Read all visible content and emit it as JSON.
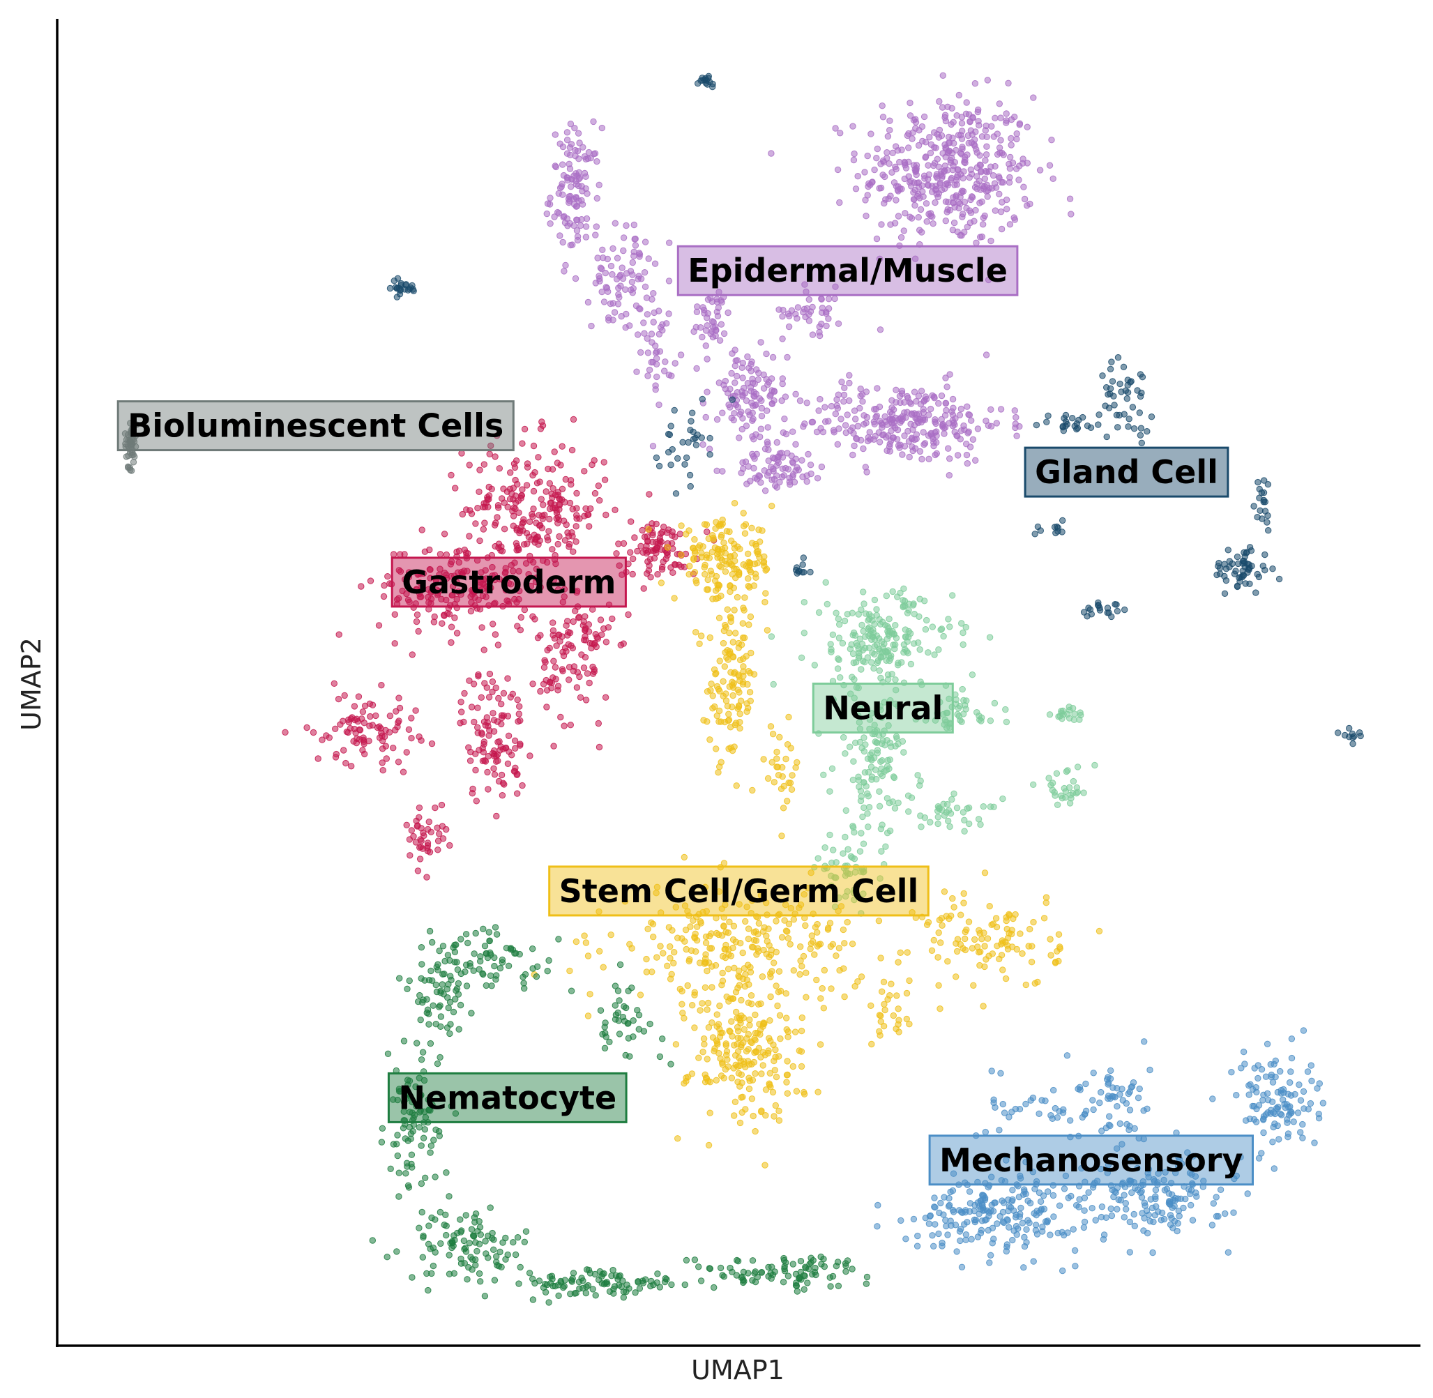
{
  "chart_data": {
    "type": "scatter",
    "title": "",
    "xlabel": "UMAP1",
    "ylabel": "UMAP2",
    "xlim": [
      0,
      100
    ],
    "ylim": [
      0,
      100
    ],
    "grid": false,
    "ticks": false,
    "legend": "none (labels placed on clusters)",
    "series": [
      {
        "name": "Epidermal/Muscle",
        "color": "#a96ec4",
        "label_at": [
          58.0,
          81.0
        ],
        "blobs": [
          {
            "cx": 65.4,
            "cy": 88.5,
            "sx": 4.3,
            "sy": 3.8,
            "n": 420
          },
          {
            "cx": 38.0,
            "cy": 87.0,
            "sx": 1.2,
            "sy": 3.2,
            "n": 110
          },
          {
            "cx": 41.5,
            "cy": 80.5,
            "sx": 1.5,
            "sy": 2.6,
            "n": 80
          },
          {
            "cx": 44.0,
            "cy": 75.0,
            "sx": 0.8,
            "sy": 2.5,
            "n": 40
          },
          {
            "cx": 50.5,
            "cy": 71.5,
            "sx": 2.0,
            "sy": 2.5,
            "n": 110
          },
          {
            "cx": 62.0,
            "cy": 69.5,
            "sx": 5.0,
            "sy": 2.0,
            "n": 280
          },
          {
            "cx": 53.0,
            "cy": 66.0,
            "sx": 2.3,
            "sy": 1.0,
            "n": 70
          },
          {
            "cx": 48.0,
            "cy": 77.5,
            "sx": 1.0,
            "sy": 1.5,
            "n": 40
          },
          {
            "cx": 55.5,
            "cy": 78.0,
            "sx": 1.5,
            "sy": 1.2,
            "n": 40
          }
        ]
      },
      {
        "name": "Bioluminescent Cells",
        "color": "#6f7a78",
        "label_at": [
          18.9,
          69.3
        ],
        "blobs": [
          {
            "cx": 5.3,
            "cy": 68.0,
            "sx": 0.3,
            "sy": 1.2,
            "n": 45
          }
        ]
      },
      {
        "name": "Gastroderm",
        "color": "#c4174f",
        "label_at": [
          33.1,
          57.5
        ],
        "blobs": [
          {
            "cx": 35.0,
            "cy": 63.0,
            "sx": 3.5,
            "sy": 3.5,
            "n": 230
          },
          {
            "cx": 29.5,
            "cy": 57.0,
            "sx": 4.0,
            "sy": 2.5,
            "n": 190
          },
          {
            "cx": 22.5,
            "cy": 46.5,
            "sx": 2.6,
            "sy": 1.8,
            "n": 90
          },
          {
            "cx": 32.0,
            "cy": 46.0,
            "sx": 1.6,
            "sy": 3.5,
            "n": 110
          },
          {
            "cx": 38.0,
            "cy": 52.0,
            "sx": 1.8,
            "sy": 3.5,
            "n": 110
          },
          {
            "cx": 27.0,
            "cy": 38.5,
            "sx": 1.0,
            "sy": 1.5,
            "n": 40
          },
          {
            "cx": 44.0,
            "cy": 60.0,
            "sx": 2.0,
            "sy": 1.5,
            "n": 90
          }
        ]
      },
      {
        "name": "Gland Cell",
        "color": "#1a4a6b",
        "label_at": [
          78.5,
          65.8
        ],
        "blobs": [
          {
            "cx": 47.5,
            "cy": 95.2,
            "sx": 0.6,
            "sy": 0.4,
            "n": 14
          },
          {
            "cx": 25.2,
            "cy": 79.7,
            "sx": 0.8,
            "sy": 0.4,
            "n": 22
          },
          {
            "cx": 78.5,
            "cy": 71.5,
            "sx": 1.3,
            "sy": 1.8,
            "n": 45
          },
          {
            "cx": 74.5,
            "cy": 69.5,
            "sx": 1.5,
            "sy": 0.5,
            "n": 20
          },
          {
            "cx": 87.0,
            "cy": 58.5,
            "sx": 1.4,
            "sy": 1.2,
            "n": 55
          },
          {
            "cx": 88.5,
            "cy": 63.5,
            "sx": 0.5,
            "sy": 1.5,
            "n": 18
          },
          {
            "cx": 77.0,
            "cy": 55.5,
            "sx": 1.2,
            "sy": 0.5,
            "n": 18
          },
          {
            "cx": 73.0,
            "cy": 61.5,
            "sx": 0.8,
            "sy": 0.3,
            "n": 10
          },
          {
            "cx": 95.0,
            "cy": 46.0,
            "sx": 0.4,
            "sy": 0.4,
            "n": 10
          },
          {
            "cx": 46.0,
            "cy": 68.0,
            "sx": 1.3,
            "sy": 2.0,
            "n": 30
          },
          {
            "cx": 54.5,
            "cy": 58.5,
            "sx": 0.5,
            "sy": 0.4,
            "n": 10
          }
        ]
      },
      {
        "name": "Neural",
        "color": "#7ecc9a",
        "label_at": [
          60.6,
          48.0
        ],
        "blobs": [
          {
            "cx": 60.5,
            "cy": 53.0,
            "sx": 3.5,
            "sy": 2.5,
            "n": 200
          },
          {
            "cx": 60.0,
            "cy": 44.0,
            "sx": 2.0,
            "sy": 3.5,
            "n": 120
          },
          {
            "cx": 66.0,
            "cy": 47.5,
            "sx": 2.0,
            "sy": 1.0,
            "n": 40
          },
          {
            "cx": 74.5,
            "cy": 47.5,
            "sx": 1.0,
            "sy": 0.5,
            "n": 18
          },
          {
            "cx": 74.0,
            "cy": 42.0,
            "sx": 1.5,
            "sy": 1.0,
            "n": 28
          },
          {
            "cx": 65.5,
            "cy": 40.0,
            "sx": 2.5,
            "sy": 0.8,
            "n": 35
          },
          {
            "cx": 58.0,
            "cy": 36.0,
            "sx": 1.5,
            "sy": 1.5,
            "n": 50
          }
        ]
      },
      {
        "name": "Stem Cell/Germ Cell",
        "color": "#efbf18",
        "label_at": [
          50.0,
          34.2
        ],
        "blobs": [
          {
            "cx": 49.0,
            "cy": 59.0,
            "sx": 2.5,
            "sy": 2.0,
            "n": 150
          },
          {
            "cx": 49.5,
            "cy": 50.0,
            "sx": 1.2,
            "sy": 4.0,
            "n": 120
          },
          {
            "cx": 53.0,
            "cy": 43.5,
            "sx": 1.0,
            "sy": 2.0,
            "n": 30
          },
          {
            "cx": 50.0,
            "cy": 30.0,
            "sx": 6.0,
            "sy": 3.0,
            "n": 260
          },
          {
            "cx": 50.5,
            "cy": 22.0,
            "sx": 2.8,
            "sy": 3.5,
            "n": 200
          },
          {
            "cx": 68.5,
            "cy": 30.5,
            "sx": 3.5,
            "sy": 2.5,
            "n": 110
          },
          {
            "cx": 61.0,
            "cy": 25.0,
            "sx": 1.0,
            "sy": 2.0,
            "n": 25
          }
        ]
      },
      {
        "name": "Nematocyte",
        "color": "#1e7d40",
        "label_at": [
          33.0,
          18.6
        ],
        "blobs": [
          {
            "cx": 32.0,
            "cy": 29.0,
            "sx": 3.5,
            "sy": 1.5,
            "n": 70
          },
          {
            "cx": 28.0,
            "cy": 26.0,
            "sx": 1.5,
            "sy": 2.5,
            "n": 60
          },
          {
            "cx": 26.0,
            "cy": 16.5,
            "sx": 1.3,
            "sy": 3.5,
            "n": 90
          },
          {
            "cx": 30.0,
            "cy": 7.5,
            "sx": 3.0,
            "sy": 1.8,
            "n": 100
          },
          {
            "cx": 40.0,
            "cy": 4.5,
            "sx": 4.0,
            "sy": 0.8,
            "n": 90
          },
          {
            "cx": 53.0,
            "cy": 5.5,
            "sx": 4.5,
            "sy": 0.8,
            "n": 90
          },
          {
            "cx": 41.5,
            "cy": 24.5,
            "sx": 2.0,
            "sy": 1.8,
            "n": 40
          }
        ]
      },
      {
        "name": "Mechanosensory",
        "color": "#4b8ec6",
        "label_at": [
          75.9,
          13.9
        ],
        "blobs": [
          {
            "cx": 69.0,
            "cy": 10.0,
            "sx": 4.0,
            "sy": 2.0,
            "n": 200
          },
          {
            "cx": 80.0,
            "cy": 11.0,
            "sx": 4.0,
            "sy": 2.0,
            "n": 160
          },
          {
            "cx": 89.5,
            "cy": 18.5,
            "sx": 2.0,
            "sy": 2.5,
            "n": 110
          },
          {
            "cx": 77.5,
            "cy": 18.0,
            "sx": 1.8,
            "sy": 2.5,
            "n": 60
          },
          {
            "cx": 72.0,
            "cy": 18.0,
            "sx": 2.5,
            "sy": 1.5,
            "n": 30
          }
        ]
      }
    ]
  }
}
